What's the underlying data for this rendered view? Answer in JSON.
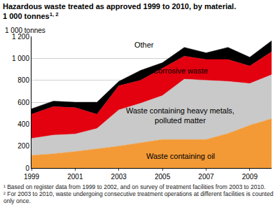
{
  "chart_data": {
    "type": "area",
    "stacked": true,
    "title": "Hazardous waste treated as approved 1999 to 2010, by material.",
    "subtitle": "1 000 tonnes",
    "subtitle_note": "1, 2",
    "y_label": "1 000 tonnes",
    "x": [
      1999,
      2000,
      2001,
      2002,
      2003,
      2004,
      2005,
      2006,
      2007,
      2008,
      2009,
      2010
    ],
    "xlim": [
      1999,
      2010
    ],
    "xticks": [
      1999,
      2001,
      2003,
      2005,
      2007,
      2009
    ],
    "ylim": [
      0,
      1200
    ],
    "yticks": [
      0,
      200,
      400,
      600,
      800,
      {
        "value": 1000,
        "label": "1 000"
      },
      {
        "value": 1200,
        "label": "1 200"
      }
    ],
    "grid": true,
    "series": [
      {
        "name": "Waste containing oil",
        "color": "#f39a36",
        "values": [
          115,
          130,
          150,
          175,
          200,
          230,
          260,
          260,
          260,
          315,
          390,
          450
        ]
      },
      {
        "name": "Waste containing heavy metals, polluted matter",
        "color": "#c9c9c9",
        "values": [
          155,
          170,
          160,
          185,
          330,
          360,
          400,
          550,
          540,
          475,
          380,
          400
        ]
      },
      {
        "name": "Corrosive waste",
        "color": "#e3000f",
        "values": [
          220,
          260,
          240,
          130,
          220,
          210,
          250,
          210,
          190,
          200,
          160,
          210
        ]
      },
      {
        "name": "Other",
        "color": "#000000",
        "values": [
          50,
          50,
          50,
          110,
          40,
          90,
          50,
          80,
          60,
          110,
          80,
          100
        ]
      }
    ],
    "notes": [
      "¹ Based on register data from 1999 to 2002, and on survey of treatment facilities from 2003 to 2010.",
      "² For 2003 to 2010, waste undergoing consecutive treatment operations at different facilities is counted only once."
    ]
  }
}
